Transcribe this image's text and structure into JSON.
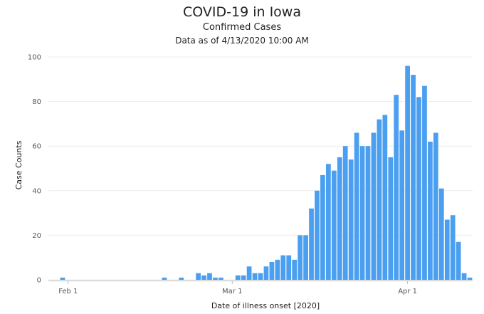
{
  "chart_data": {
    "type": "bar",
    "title": "COVID-19 in Iowa",
    "subtitle": "Confirmed Cases",
    "as_of": "Data as of 4/13/2020 10:00 AM",
    "xlabel": "Date of illness onset [2020]",
    "ylabel": "Case Counts",
    "ylim": [
      0,
      100
    ],
    "yticks": [
      0,
      20,
      40,
      60,
      80,
      100
    ],
    "xrange": [
      "2020-01-29",
      "2020-04-13"
    ],
    "xticks": [
      {
        "date": "2020-02-01",
        "label": "Feb 1"
      },
      {
        "date": "2020-03-01",
        "label": "Mar 1"
      },
      {
        "date": "2020-04-01",
        "label": "Apr 1"
      }
    ],
    "grid": "horizontal",
    "bar_color": "#4b9ff0",
    "dates": [
      "2020-01-29",
      "2020-01-30",
      "2020-01-31",
      "2020-02-01",
      "2020-02-02",
      "2020-02-03",
      "2020-02-04",
      "2020-02-05",
      "2020-02-06",
      "2020-02-07",
      "2020-02-08",
      "2020-02-09",
      "2020-02-10",
      "2020-02-11",
      "2020-02-12",
      "2020-02-13",
      "2020-02-14",
      "2020-02-15",
      "2020-02-16",
      "2020-02-17",
      "2020-02-18",
      "2020-02-19",
      "2020-02-20",
      "2020-02-21",
      "2020-02-22",
      "2020-02-23",
      "2020-02-24",
      "2020-02-25",
      "2020-02-26",
      "2020-02-27",
      "2020-02-28",
      "2020-02-29",
      "2020-03-01",
      "2020-03-02",
      "2020-03-03",
      "2020-03-04",
      "2020-03-05",
      "2020-03-06",
      "2020-03-07",
      "2020-03-08",
      "2020-03-09",
      "2020-03-10",
      "2020-03-11",
      "2020-03-12",
      "2020-03-13",
      "2020-03-14",
      "2020-03-15",
      "2020-03-16",
      "2020-03-17",
      "2020-03-18",
      "2020-03-19",
      "2020-03-20",
      "2020-03-21",
      "2020-03-22",
      "2020-03-23",
      "2020-03-24",
      "2020-03-25",
      "2020-03-26",
      "2020-03-27",
      "2020-03-28",
      "2020-03-29",
      "2020-03-30",
      "2020-03-31",
      "2020-04-01",
      "2020-04-02",
      "2020-04-03",
      "2020-04-04",
      "2020-04-05",
      "2020-04-06",
      "2020-04-07",
      "2020-04-08",
      "2020-04-09",
      "2020-04-10",
      "2020-04-11",
      "2020-04-12"
    ],
    "values": [
      0,
      0,
      1,
      0,
      0,
      0,
      0,
      0,
      0,
      0,
      0,
      0,
      0,
      0,
      0,
      0,
      0,
      0,
      0,
      0,
      1,
      0,
      0,
      1,
      0,
      0,
      3,
      2,
      3,
      1,
      1,
      0,
      0,
      2,
      2,
      6,
      3,
      3,
      6,
      8,
      9,
      11,
      11,
      9,
      20,
      20,
      32,
      40,
      47,
      52,
      49,
      55,
      60,
      54,
      66,
      60,
      60,
      66,
      72,
      74,
      55,
      83,
      67,
      96,
      92,
      82,
      87,
      62,
      66,
      41,
      27,
      29,
      17,
      3,
      1
    ]
  }
}
